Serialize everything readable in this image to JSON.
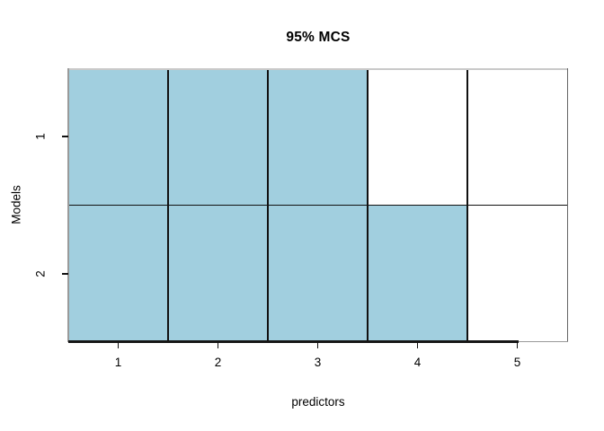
{
  "chart_data": {
    "type": "heatmap",
    "title": "95% MCS",
    "xlabel": "predictors",
    "ylabel": "Models",
    "x_tick_labels": [
      "1",
      "2",
      "3",
      "4",
      "5"
    ],
    "y_tick_labels": [
      "1",
      "2"
    ],
    "x_range": [
      0.5,
      5.5
    ],
    "y_categories": [
      "Model 1",
      "Model 2"
    ],
    "matrix": [
      [
        1,
        1,
        1,
        0,
        0
      ],
      [
        1,
        1,
        1,
        1,
        0
      ]
    ],
    "rows": [
      {
        "model": "1",
        "included_predictors": [
          1,
          2,
          3
        ]
      },
      {
        "model": "2",
        "included_predictors": [
          1,
          2,
          3,
          4
        ]
      }
    ],
    "fill_color": "#A1CFDF",
    "empty_color": "#FFFFFF",
    "grid_line_color": "#111111",
    "grid": "on",
    "legend_position": "none"
  }
}
